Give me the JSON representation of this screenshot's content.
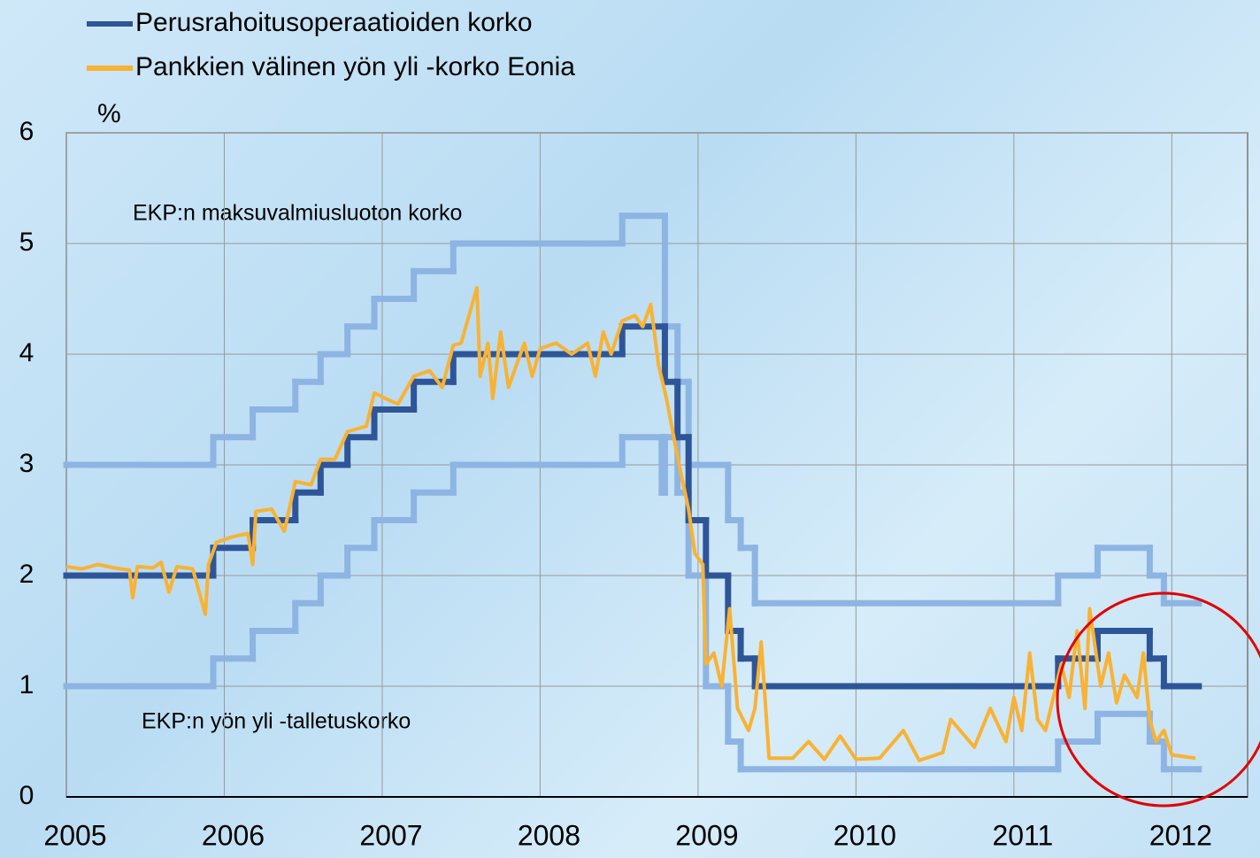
{
  "chart_data": {
    "type": "line",
    "y_label": "%",
    "xlim": [
      2005,
      2012.48
    ],
    "xticks": [
      2005,
      2006,
      2007,
      2008,
      2009,
      2010,
      2011,
      2012
    ],
    "ylim": [
      0,
      6
    ],
    "yticks": [
      0,
      1,
      2,
      3,
      4,
      5,
      6
    ],
    "grid": true,
    "legend": "upper left",
    "annotations": [
      "EKP:n maksuvalmiusluoton korko",
      "EKP:n yön yli -talletuskorko"
    ],
    "series": [
      {
        "name": "Perusrahoitusoperaatioiden korko",
        "color": "#2e5597",
        "step": true,
        "x": [
          2005.0,
          2005.93,
          2006.18,
          2006.45,
          2006.61,
          2006.78,
          2006.95,
          2007.2,
          2007.45,
          2008.52,
          2008.79,
          2008.87,
          2008.94,
          2009.05,
          2009.19,
          2009.27,
          2009.36,
          2011.28,
          2011.53,
          2011.86,
          2011.95,
          2012.17
        ],
        "values": [
          2,
          2.25,
          2.5,
          2.75,
          3,
          3.25,
          3.5,
          3.75,
          4,
          4.25,
          3.75,
          3.25,
          2.5,
          2,
          1.5,
          1.25,
          1,
          1.25,
          1.5,
          1.25,
          1,
          1
        ]
      },
      {
        "name": "Pankkien välinen yön yli -korko Eonia",
        "color": "#f9b233",
        "step": false,
        "x": [
          2005.0,
          2005.1,
          2005.2,
          2005.3,
          2005.4,
          2005.42,
          2005.45,
          2005.55,
          2005.6,
          2005.65,
          2005.7,
          2005.8,
          2005.88,
          2005.9,
          2005.95,
          2006.05,
          2006.15,
          2006.18,
          2006.2,
          2006.3,
          2006.38,
          2006.45,
          2006.55,
          2006.61,
          2006.7,
          2006.78,
          2006.9,
          2006.95,
          2007.05,
          2007.1,
          2007.2,
          2007.3,
          2007.38,
          2007.45,
          2007.5,
          2007.6,
          2007.62,
          2007.67,
          2007.7,
          2007.75,
          2007.8,
          2007.9,
          2007.95,
          2008.0,
          2008.1,
          2008.2,
          2008.3,
          2008.35,
          2008.4,
          2008.45,
          2008.52,
          2008.6,
          2008.65,
          2008.7,
          2008.75,
          2008.8,
          2008.84,
          2008.88,
          2008.94,
          2008.98,
          2009.03,
          2009.05,
          2009.1,
          2009.15,
          2009.2,
          2009.25,
          2009.32,
          2009.36,
          2009.4,
          2009.45,
          2009.6,
          2009.7,
          2009.8,
          2009.9,
          2010.0,
          2010.15,
          2010.3,
          2010.4,
          2010.55,
          2010.6,
          2010.75,
          2010.85,
          2010.95,
          2011.0,
          2011.05,
          2011.1,
          2011.15,
          2011.2,
          2011.3,
          2011.35,
          2011.4,
          2011.45,
          2011.48,
          2011.55,
          2011.6,
          2011.65,
          2011.7,
          2011.78,
          2011.82,
          2011.86,
          2011.9,
          2011.95,
          2012.0,
          2012.1,
          2012.15
        ],
        "values": [
          2.08,
          2.06,
          2.1,
          2.07,
          2.05,
          1.8,
          2.08,
          2.07,
          2.12,
          1.85,
          2.08,
          2.06,
          1.65,
          2.1,
          2.3,
          2.35,
          2.38,
          2.1,
          2.58,
          2.6,
          2.4,
          2.85,
          2.82,
          3.05,
          3.05,
          3.3,
          3.35,
          3.65,
          3.58,
          3.55,
          3.8,
          3.85,
          3.7,
          4.08,
          4.1,
          4.6,
          3.8,
          4.1,
          3.6,
          4.2,
          3.7,
          4.1,
          3.8,
          4.05,
          4.1,
          4.0,
          4.1,
          3.8,
          4.2,
          4.0,
          4.3,
          4.35,
          4.25,
          4.45,
          3.9,
          3.6,
          3.3,
          3.0,
          2.6,
          2.2,
          2.1,
          1.2,
          1.3,
          1.0,
          1.7,
          0.8,
          0.6,
          0.8,
          1.4,
          0.35,
          0.35,
          0.5,
          0.34,
          0.55,
          0.34,
          0.35,
          0.6,
          0.33,
          0.4,
          0.7,
          0.45,
          0.8,
          0.5,
          0.9,
          0.6,
          1.3,
          0.7,
          0.6,
          1.2,
          0.9,
          1.5,
          0.8,
          1.7,
          1.0,
          1.3,
          0.85,
          1.1,
          0.9,
          1.3,
          0.7,
          0.5,
          0.6,
          0.38,
          0.36,
          0.35
        ]
      },
      {
        "color": "#8db4e2",
        "step": true,
        "x": [
          2005.0,
          2005.93,
          2006.18,
          2006.45,
          2006.61,
          2006.78,
          2006.95,
          2007.2,
          2007.45,
          2008.52,
          2008.79,
          2008.87,
          2008.94,
          2009.19,
          2009.27,
          2009.36,
          2011.28,
          2011.53,
          2011.86,
          2011.95,
          2012.17
        ],
        "values": [
          3,
          3.25,
          3.5,
          3.75,
          4,
          4.25,
          4.5,
          4.75,
          5,
          5.25,
          4.25,
          3.75,
          3,
          2.5,
          2.25,
          1.75,
          2,
          2.25,
          2,
          1.75,
          1.75
        ]
      },
      {
        "color": "#8db4e2",
        "step": true,
        "x": [
          2005.0,
          2005.93,
          2006.18,
          2006.45,
          2006.61,
          2006.78,
          2006.95,
          2007.2,
          2007.45,
          2008.52,
          2008.77,
          2008.79,
          2008.87,
          2008.94,
          2009.05,
          2009.19,
          2009.27,
          2011.28,
          2011.53,
          2011.86,
          2011.95,
          2012.17
        ],
        "values": [
          1,
          1.25,
          1.5,
          1.75,
          2,
          2.25,
          2.5,
          2.75,
          3,
          3.25,
          2.75,
          3.25,
          2.75,
          2,
          1,
          0.5,
          0.25,
          0.5,
          0.75,
          0.5,
          0.25,
          0.25
        ]
      }
    ]
  }
}
